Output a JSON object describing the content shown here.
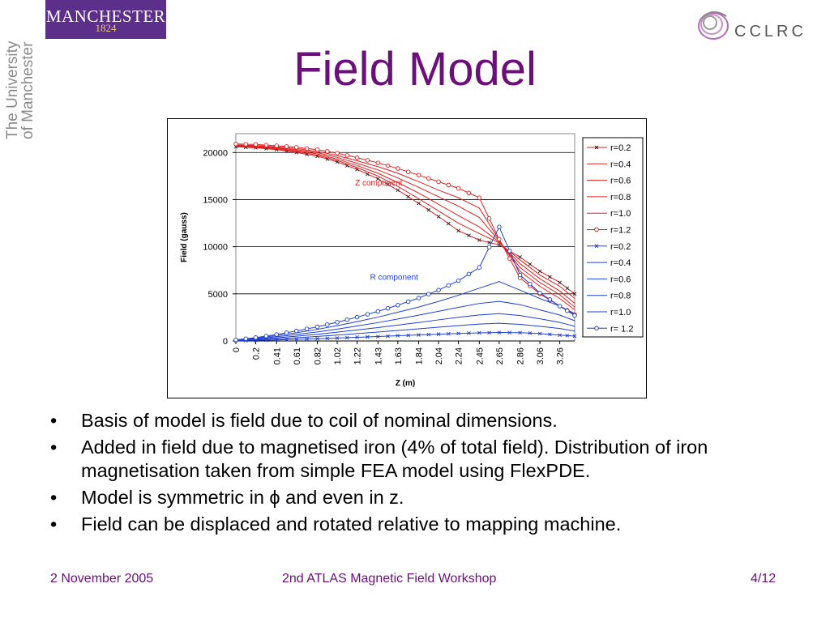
{
  "logos": {
    "manchester_name": "MANCHESTER",
    "manchester_year": "1824",
    "university_vertical": [
      "The University",
      "of Manchester"
    ],
    "cclrc": "CCLRC"
  },
  "slide": {
    "title": "Field Model",
    "bullets": [
      "Basis of model is field due to coil of nominal dimensions.",
      "Added in field due to magnetised iron (4% of total field). Distribution of iron magnetisation taken from simple FEA model using FlexPDE.",
      "Model is symmetric in ϕ and even in z.",
      "Field can be displaced and rotated relative to mapping machine."
    ],
    "bullet_mark": "•"
  },
  "footer": {
    "date": "2 November 2005",
    "event": "2nd ATLAS Magnetic Field Workshop",
    "page": "4/12"
  },
  "colors": {
    "title": "#6b0f7a",
    "z_series": "#e02020",
    "r_series": "#1f3fd0",
    "logo_bg": "#5b2f8a"
  },
  "chart_data": {
    "type": "line",
    "xlabel": "Z (m)",
    "ylabel": "Field (gauss)",
    "ylim": [
      0,
      22000
    ],
    "yticks": [
      0,
      5000,
      10000,
      15000,
      20000
    ],
    "x_tick_labels": [
      "0",
      "0.2",
      "0.41",
      "0.61",
      "0.82",
      "1.02",
      "1.22",
      "1.43",
      "1.63",
      "1.84",
      "2.04",
      "2.24",
      "2.45",
      "2.65",
      "2.86",
      "3.06",
      "3.26"
    ],
    "xlim": [
      0,
      3.41
    ],
    "grid": "horizontal",
    "legend": "right",
    "annotations": [
      {
        "text": "Z component",
        "x": 1.2,
        "y": 16500
      },
      {
        "text": "R component",
        "x": 1.35,
        "y": 6500
      }
    ],
    "x": [
      0.0,
      0.2,
      0.41,
      0.61,
      0.82,
      1.02,
      1.22,
      1.43,
      1.63,
      1.84,
      2.04,
      2.24,
      2.45,
      2.65,
      2.86,
      3.06,
      3.26,
      3.41
    ],
    "series": [
      {
        "name": "r=0.2",
        "group": "Z",
        "marker": "x",
        "values": [
          20600,
          20500,
          20300,
          20000,
          19600,
          19000,
          18200,
          17200,
          16000,
          14600,
          13200,
          11700,
          10700,
          10200,
          8900,
          7400,
          6200,
          5000
        ]
      },
      {
        "name": "r=0.4",
        "group": "Z",
        "marker": "none",
        "values": [
          20650,
          20550,
          20380,
          20100,
          19720,
          19150,
          18400,
          17500,
          16400,
          15100,
          13800,
          12500,
          11400,
          10400,
          8600,
          7000,
          5800,
          4500
        ]
      },
      {
        "name": "r=0.6",
        "group": "Z",
        "marker": "none",
        "values": [
          20700,
          20620,
          20450,
          20200,
          19850,
          19300,
          18620,
          17800,
          16800,
          15700,
          14500,
          13300,
          12100,
          10500,
          8200,
          6600,
          5300,
          4000
        ]
      },
      {
        "name": "r=0.8",
        "group": "Z",
        "marker": "none",
        "values": [
          20750,
          20680,
          20520,
          20300,
          19980,
          19480,
          18850,
          18150,
          17300,
          16300,
          15300,
          14300,
          13100,
          10600,
          7800,
          6200,
          4900,
          3600
        ]
      },
      {
        "name": "r=1.0",
        "group": "Z",
        "marker": "none",
        "values": [
          20800,
          20740,
          20600,
          20420,
          20120,
          19680,
          19120,
          18500,
          17800,
          16900,
          16000,
          15200,
          14100,
          10700,
          7400,
          5800,
          4500,
          3300
        ]
      },
      {
        "name": "r=1.2",
        "group": "Z",
        "marker": "o",
        "values": [
          20900,
          20850,
          20720,
          20550,
          20300,
          19930,
          19450,
          18900,
          18300,
          17600,
          16900,
          16200,
          15200,
          10800,
          6700,
          5000,
          3700,
          2800
        ]
      },
      {
        "name": "r=0.2",
        "group": "R",
        "marker": "x",
        "values": [
          20,
          60,
          110,
          170,
          240,
          310,
          390,
          470,
          560,
          640,
          720,
          800,
          860,
          900,
          880,
          780,
          620,
          520
        ]
      },
      {
        "name": "r=0.4",
        "group": "R",
        "marker": "none",
        "values": [
          40,
          120,
          220,
          340,
          480,
          620,
          780,
          950,
          1120,
          1290,
          1460,
          1630,
          1790,
          1880,
          1760,
          1560,
          1320,
          1050
        ]
      },
      {
        "name": "r=0.6",
        "group": "R",
        "marker": "none",
        "values": [
          60,
          180,
          330,
          500,
          710,
          930,
          1170,
          1420,
          1690,
          1960,
          2240,
          2510,
          2760,
          2900,
          2700,
          2350,
          1970,
          1560
        ]
      },
      {
        "name": "r=0.8",
        "group": "R",
        "marker": "none",
        "values": [
          80,
          240,
          450,
          680,
          960,
          1260,
          1590,
          1950,
          2330,
          2740,
          3150,
          3570,
          3980,
          4200,
          3850,
          3300,
          2750,
          2150
        ]
      },
      {
        "name": "r=1.0",
        "group": "R",
        "marker": "none",
        "values": [
          100,
          300,
          570,
          870,
          1230,
          1620,
          2050,
          2530,
          3050,
          3600,
          4200,
          4850,
          5600,
          6300,
          5400,
          4500,
          3700,
          2900
        ]
      },
      {
        "name": "r= 1.2",
        "group": "R",
        "marker": "o",
        "values": [
          120,
          360,
          690,
          1060,
          1500,
          1990,
          2530,
          3140,
          3800,
          4550,
          5400,
          6400,
          7800,
          12100,
          7000,
          5100,
          3700,
          2700
        ]
      }
    ]
  }
}
